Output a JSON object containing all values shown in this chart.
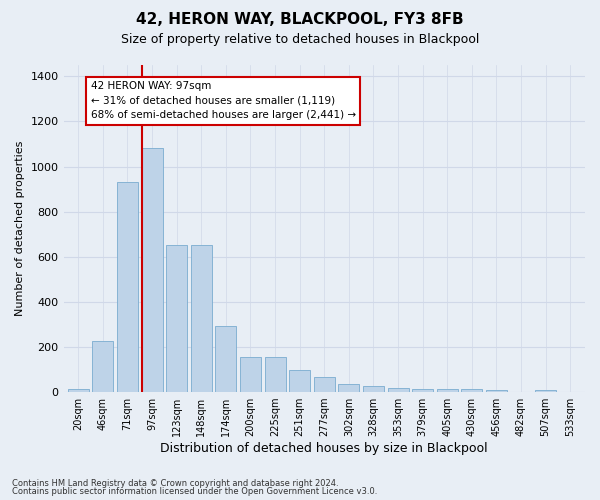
{
  "title": "42, HERON WAY, BLACKPOOL, FY3 8FB",
  "subtitle": "Size of property relative to detached houses in Blackpool",
  "xlabel": "Distribution of detached houses by size in Blackpool",
  "ylabel": "Number of detached properties",
  "footnote1": "Contains HM Land Registry data © Crown copyright and database right 2024.",
  "footnote2": "Contains public sector information licensed under the Open Government Licence v3.0.",
  "annotation_line1": "42 HERON WAY: 97sqm",
  "annotation_line2": "← 31% of detached houses are smaller (1,119)",
  "annotation_line3": "68% of semi-detached houses are larger (2,441) →",
  "bar_labels": [
    "20sqm",
    "46sqm",
    "71sqm",
    "97sqm",
    "123sqm",
    "148sqm",
    "174sqm",
    "200sqm",
    "225sqm",
    "251sqm",
    "277sqm",
    "302sqm",
    "328sqm",
    "353sqm",
    "379sqm",
    "405sqm",
    "430sqm",
    "456sqm",
    "482sqm",
    "507sqm",
    "533sqm"
  ],
  "bar_values": [
    15,
    225,
    930,
    1080,
    650,
    650,
    295,
    155,
    155,
    100,
    65,
    35,
    25,
    18,
    12,
    12,
    12,
    10,
    0,
    8,
    0
  ],
  "bar_color": "#bed3e8",
  "bar_edgecolor": "#7aacd0",
  "highlight_color": "#cc0000",
  "highlight_bin": 3,
  "ylim": [
    0,
    1450
  ],
  "yticks": [
    0,
    200,
    400,
    600,
    800,
    1000,
    1200,
    1400
  ],
  "grid_color": "#d0d8e8",
  "bg_color": "#e8eef5",
  "annotation_box_color": "#ffffff",
  "annotation_box_edgecolor": "#cc0000",
  "title_fontsize": 11,
  "subtitle_fontsize": 9
}
